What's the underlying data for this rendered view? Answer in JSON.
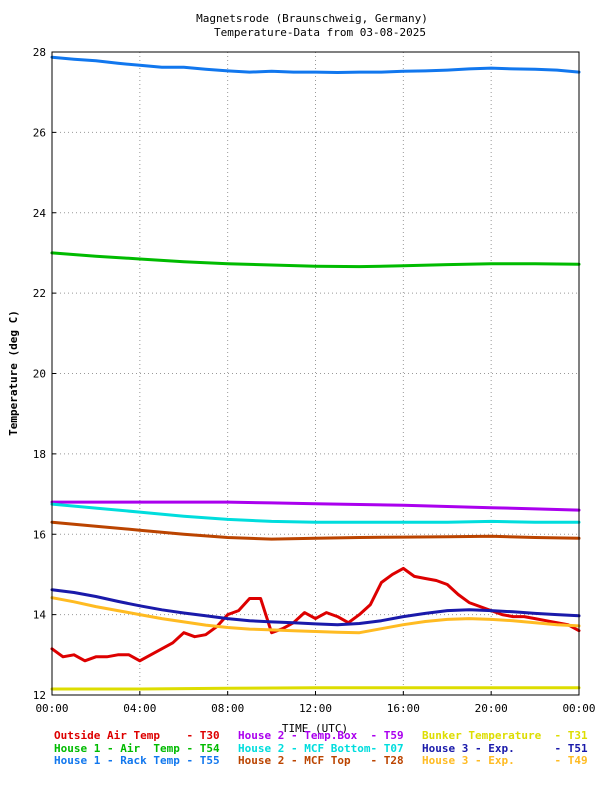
{
  "chart_data": {
    "type": "line",
    "title": "Magnetsrode (Braunschweig, Germany)",
    "subtitle": "Temperature-Data from 03-08-2025",
    "xlabel": "TIME (UTC)",
    "ylabel": "Temperature (deg C)",
    "xlim": [
      0,
      24
    ],
    "ylim": [
      12,
      28
    ],
    "grid": true,
    "legend_position": "bottom",
    "x_ticks": [
      0,
      4,
      8,
      12,
      16,
      20,
      24
    ],
    "x_tick_labels": [
      "00:00",
      "04:00",
      "08:00",
      "12:00",
      "16:00",
      "20:00",
      "00:00"
    ],
    "y_ticks": [
      12,
      14,
      16,
      18,
      20,
      22,
      24,
      26,
      28
    ],
    "y_tick_labels": [
      "12",
      "14",
      "16",
      "18",
      "20",
      "22",
      "24",
      "26",
      "28"
    ],
    "series": [
      {
        "name": "Outside Air Temp",
        "sensor": "T30",
        "color": "#dd0000",
        "x": [
          0,
          0.5,
          1,
          1.5,
          2,
          2.5,
          3,
          3.5,
          4,
          4.5,
          5,
          5.5,
          6,
          6.5,
          7,
          7.5,
          8,
          8.5,
          9,
          9.5,
          10,
          10.5,
          11,
          11.5,
          12,
          12.5,
          13,
          13.5,
          14,
          14.5,
          15,
          15.5,
          16,
          16.5,
          17,
          17.5,
          18,
          18.5,
          19,
          19.5,
          20,
          20.5,
          21,
          21.5,
          22,
          22.5,
          23,
          23.5,
          24
        ],
        "values": [
          13.15,
          12.95,
          13.0,
          12.85,
          12.95,
          12.95,
          13.0,
          13.0,
          12.85,
          13.0,
          13.15,
          13.3,
          13.55,
          13.45,
          13.5,
          13.7,
          14.0,
          14.1,
          14.4,
          14.4,
          13.55,
          13.65,
          13.8,
          14.05,
          13.9,
          14.05,
          13.95,
          13.8,
          14.0,
          14.25,
          14.8,
          15.0,
          15.15,
          14.95,
          14.9,
          14.85,
          14.75,
          14.5,
          14.3,
          14.2,
          14.1,
          14.0,
          13.95,
          13.95,
          13.9,
          13.85,
          13.8,
          13.75,
          13.6
        ]
      },
      {
        "name": "House 1 - Air  Temp",
        "sensor": "T54",
        "color": "#00bb00",
        "x": [
          0,
          2,
          4,
          6,
          8,
          10,
          12,
          14,
          16,
          18,
          20,
          22,
          24
        ],
        "values": [
          23.0,
          22.92,
          22.85,
          22.78,
          22.73,
          22.7,
          22.67,
          22.66,
          22.68,
          22.71,
          22.73,
          22.73,
          22.72
        ]
      },
      {
        "name": "House 1 - Rack Temp",
        "sensor": "T55",
        "color": "#1177ee",
        "x": [
          0,
          1,
          2,
          3,
          4,
          5,
          6,
          7,
          8,
          9,
          10,
          11,
          12,
          13,
          14,
          15,
          16,
          17,
          18,
          19,
          20,
          21,
          22,
          23,
          24
        ],
        "values": [
          27.87,
          27.82,
          27.78,
          27.72,
          27.67,
          27.62,
          27.62,
          27.57,
          27.53,
          27.5,
          27.52,
          27.5,
          27.5,
          27.49,
          27.5,
          27.5,
          27.52,
          27.53,
          27.55,
          27.58,
          27.6,
          27.58,
          27.57,
          27.55,
          27.5
        ]
      },
      {
        "name": "House 2 - Temp.Box",
        "sensor": "T59",
        "color": "#aa00ee",
        "x": [
          0,
          2,
          4,
          6,
          8,
          10,
          12,
          14,
          16,
          18,
          20,
          22,
          24
        ],
        "values": [
          16.8,
          16.8,
          16.8,
          16.8,
          16.8,
          16.78,
          16.76,
          16.74,
          16.72,
          16.69,
          16.66,
          16.63,
          16.6
        ]
      },
      {
        "name": "House 2 - MCF Bottom",
        "sensor": "T07",
        "color": "#00dddd",
        "x": [
          0,
          2,
          4,
          6,
          8,
          10,
          12,
          14,
          16,
          18,
          20,
          22,
          24
        ],
        "values": [
          16.75,
          16.65,
          16.55,
          16.45,
          16.37,
          16.32,
          16.3,
          16.3,
          16.3,
          16.3,
          16.32,
          16.3,
          16.3
        ]
      },
      {
        "name": "House 2 - MCF Top",
        "sensor": "T28",
        "color": "#bb4400",
        "x": [
          0,
          2,
          4,
          6,
          8,
          10,
          12,
          14,
          16,
          18,
          20,
          22,
          24
        ],
        "values": [
          16.3,
          16.2,
          16.1,
          16.0,
          15.92,
          15.88,
          15.9,
          15.92,
          15.93,
          15.94,
          15.95,
          15.92,
          15.9
        ]
      },
      {
        "name": "Bunker Temperature",
        "sensor": "T31",
        "color": "#dddd00",
        "x": [
          0,
          4,
          8,
          12,
          16,
          20,
          24
        ],
        "values": [
          12.15,
          12.15,
          12.17,
          12.18,
          12.18,
          12.18,
          12.18
        ]
      },
      {
        "name": "House 3 - Exp.",
        "sensor": "T51",
        "color": "#1a1aaa",
        "x": [
          0,
          1,
          2,
          3,
          4,
          5,
          6,
          7,
          8,
          9,
          10,
          11,
          12,
          13,
          14,
          15,
          16,
          17,
          18,
          19,
          20,
          21,
          22,
          23,
          24
        ],
        "values": [
          14.62,
          14.55,
          14.45,
          14.33,
          14.22,
          14.12,
          14.04,
          13.97,
          13.9,
          13.85,
          13.82,
          13.8,
          13.77,
          13.75,
          13.78,
          13.85,
          13.95,
          14.03,
          14.1,
          14.12,
          14.1,
          14.07,
          14.03,
          14.0,
          13.97
        ]
      },
      {
        "name": "House 3 - Exp.",
        "sensor": "T49",
        "color": "#ffbb22",
        "x": [
          0,
          1,
          2,
          3,
          4,
          5,
          6,
          7,
          8,
          9,
          10,
          11,
          12,
          13,
          14,
          15,
          16,
          17,
          18,
          19,
          20,
          21,
          22,
          23,
          24
        ],
        "values": [
          14.42,
          14.32,
          14.2,
          14.1,
          14.0,
          13.9,
          13.82,
          13.74,
          13.68,
          13.64,
          13.62,
          13.6,
          13.58,
          13.56,
          13.55,
          13.65,
          13.75,
          13.83,
          13.88,
          13.9,
          13.88,
          13.85,
          13.8,
          13.75,
          13.72
        ]
      }
    ]
  },
  "legend": {
    "rows": [
      [
        {
          "label": "Outside Air Temp    - T30",
          "color": "#dd0000"
        },
        {
          "label": "House 2 - Temp.Box  - T59",
          "color": "#aa00ee"
        },
        {
          "label": "Bunker Temperature  - T31",
          "color": "#dddd00"
        }
      ],
      [
        {
          "label": "House 1 - Air  Temp - T54",
          "color": "#00bb00"
        },
        {
          "label": "House 2 - MCF Bottom- T07",
          "color": "#00dddd"
        },
        {
          "label": "House 3 - Exp.      - T51",
          "color": "#1a1aaa"
        }
      ],
      [
        {
          "label": "House 1 - Rack Temp - T55",
          "color": "#1177ee"
        },
        {
          "label": "House 2 - MCF Top   - T28",
          "color": "#bb4400"
        },
        {
          "label": "House 3 - Exp.      - T49",
          "color": "#ffbb22"
        }
      ]
    ]
  }
}
